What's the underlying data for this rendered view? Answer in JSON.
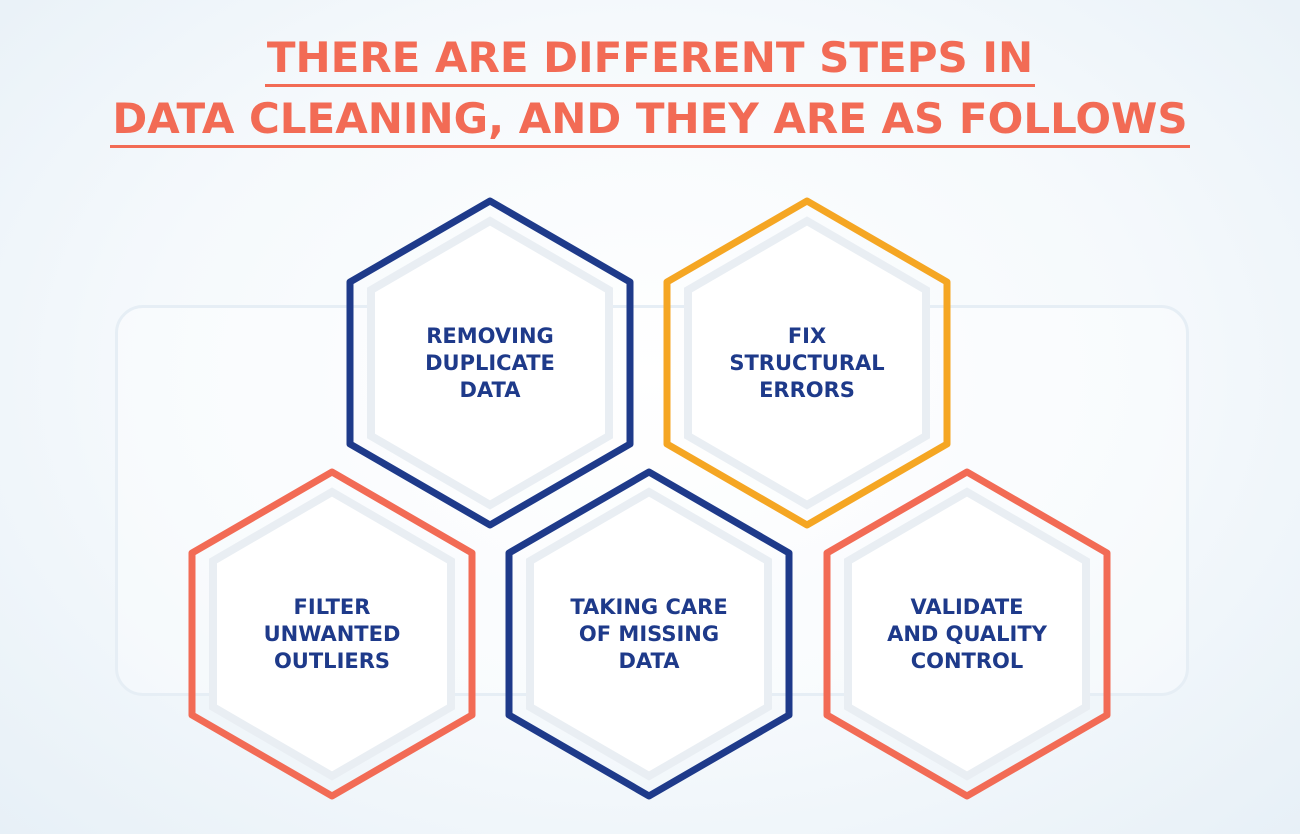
{
  "title": {
    "line1": "THERE ARE DIFFERENT STEPS IN",
    "line2": "DATA CLEANING, AND THEY ARE AS FOLLOWS"
  },
  "colors": {
    "title": "#f26b55",
    "navy": "#1e3a8a",
    "orange": "#f5a623",
    "coral": "#f26b55",
    "inner_stroke": "#e9eef3",
    "label": "#1e3a8a"
  },
  "steps": [
    {
      "lines": [
        "REMOVING",
        "DUPLICATE",
        "DATA"
      ],
      "border_color": "#1e3a8a"
    },
    {
      "lines": [
        "FIX",
        "STRUCTURAL",
        "ERRORS"
      ],
      "border_color": "#f5a623"
    },
    {
      "lines": [
        "FILTER",
        "UNWANTED",
        "OUTLIERS"
      ],
      "border_color": "#f26b55"
    },
    {
      "lines": [
        "TAKING CARE",
        "OF MISSING",
        "DATA"
      ],
      "border_color": "#1e3a8a"
    },
    {
      "lines": [
        "VALIDATE",
        "AND QUALITY",
        "CONTROL"
      ],
      "border_color": "#f26b55"
    }
  ]
}
